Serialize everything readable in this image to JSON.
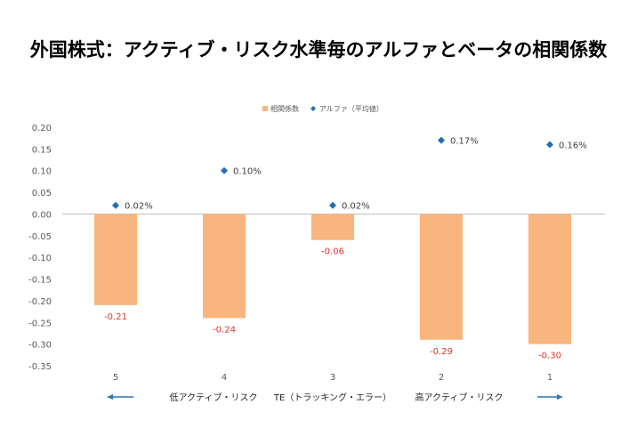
{
  "title": "外国株式：アクティブ・リスク水準毎のアルファとベータの相関係数",
  "chart_data": {
    "type": "bar",
    "categories": [
      "5",
      "4",
      "3",
      "2",
      "1"
    ],
    "series": [
      {
        "name": "相関係数",
        "type": "bar",
        "values": [
          -0.21,
          -0.24,
          -0.06,
          -0.29,
          -0.3
        ],
        "labels": [
          "-0.21",
          "-0.24",
          "-0.06",
          "-0.29",
          "-0.30"
        ],
        "color": "#F9B57E",
        "label_color": "#E8322B"
      },
      {
        "name": "アルファ（平均値）",
        "type": "scatter",
        "values": [
          0.02,
          0.1,
          0.02,
          0.17,
          0.16
        ],
        "labels": [
          "0.02%",
          "0.10%",
          "0.02%",
          "0.17%",
          "0.16%"
        ],
        "color": "#1F6FB5"
      }
    ],
    "ylim": [
      -0.35,
      0.2
    ],
    "yticks": [
      "0.20",
      "0.15",
      "0.10",
      "0.05",
      "0.00",
      "-0.05",
      "-0.10",
      "-0.15",
      "-0.20",
      "-0.25",
      "-0.30",
      "-0.35"
    ],
    "legend": "top-center",
    "grid": false,
    "annotations": {
      "low": "低アクティブ・リスク",
      "mid": "TE（トラッキング・エラー）",
      "high": "高アクティブ・リスク"
    }
  }
}
